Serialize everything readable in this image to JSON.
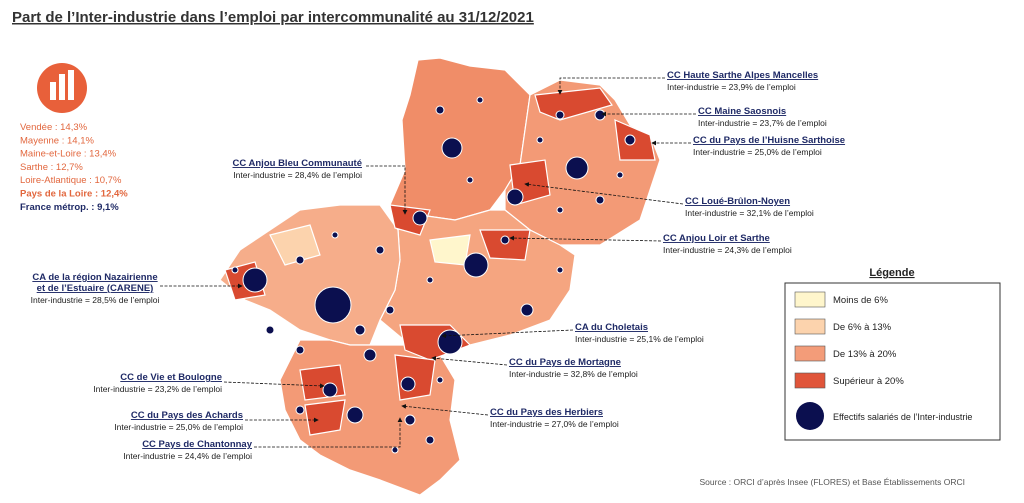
{
  "title": "Part de l’Inter-industrie dans l’emploi par intercommunalité au 31/12/2021",
  "departments": [
    "Vendée : 14,3%",
    "Mayenne : 14,1%",
    "Maine-et-Loire : 13,4%",
    "Sarthe : 12,7%",
    "Loire-Atlantique : 10,7%"
  ],
  "region": "Pays de la Loire : 12,4%",
  "france": "France métrop. : 9,1%",
  "callouts": [
    {
      "name": [
        "CC Haute Sarthe Alpes Mancelles"
      ],
      "text": "Inter-industrie = 23,9% de l’emploi"
    },
    {
      "name": [
        "CC Maine Saosnois"
      ],
      "text": "Inter-industrie = 23,7% de l’emploi"
    },
    {
      "name": [
        "CC du Pays de l’Huisne Sarthoise"
      ],
      "text": "Inter-industrie = 25,0% de l’emploi"
    },
    {
      "name": [
        "CC Loué-Brûlon-Noyen"
      ],
      "text": "Inter-industrie = 32,1% de l’emploi"
    },
    {
      "name": [
        "CC Anjou Loir et Sarthe"
      ],
      "text": "Inter-industrie = 24,3% de l’emploi"
    },
    {
      "name": [
        "CC Anjou Bleu Communauté"
      ],
      "text": "Inter-industrie = 28,4% de l’emploi"
    },
    {
      "name": [
        "CA de la région Nazairienne",
        "et de l’Estuaire (CARENE)"
      ],
      "text": "Inter-industrie = 28,5% de l’emploi"
    },
    {
      "name": [
        "CA du Choletais"
      ],
      "text": "Inter-industrie = 25,1% de l’emploi"
    },
    {
      "name": [
        "CC du Pays de Mortagne"
      ],
      "text": "Inter-industrie = 32,8% de l’emploi"
    },
    {
      "name": [
        "CC de Vie et Boulogne"
      ],
      "text": "Inter-industrie = 23,2% de l’emploi"
    },
    {
      "name": [
        "CC du Pays des Achards"
      ],
      "text": "Inter-industrie = 25,0% de l’emploi"
    },
    {
      "name": [
        "CC Pays de Chantonnay"
      ],
      "text": "Inter-industrie = 24,4% de l’emploi"
    },
    {
      "name": [
        "CC du Pays des Herbiers"
      ],
      "text": "Inter-industrie = 27,0% de l’emploi"
    }
  ],
  "legend": {
    "title": "Légende",
    "items": [
      {
        "label": "Moins de 6%",
        "color": "#fff6cc"
      },
      {
        "label": "De 6% à 13%",
        "color": "#fcd3ad"
      },
      {
        "label": "De 13% à 20%",
        "color": "#f39c79"
      },
      {
        "label": "Supérieur à 20%",
        "color": "#e0553a"
      }
    ],
    "circle": "Effectifs salariés de l’Inter-industrie"
  },
  "source": "Source : ORCI d’après Insee (FLORES) et Base Établissements ORCI"
}
